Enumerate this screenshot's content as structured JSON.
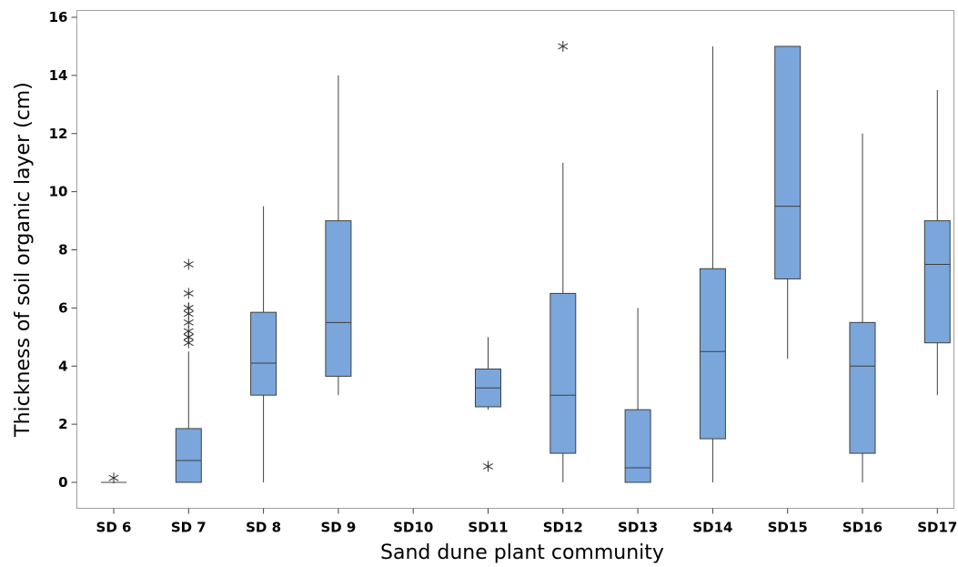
{
  "chart_data": {
    "type": "boxplot",
    "xlabel": "Sand dune plant community",
    "ylabel": "Thickness of soil organic layer (cm)",
    "ylim": [
      -0.9,
      16.2
    ],
    "yticks": [
      0,
      2,
      4,
      6,
      8,
      10,
      12,
      14,
      16
    ],
    "categories": [
      "SD 6",
      "SD 7",
      "SD 8",
      "SD 9",
      "SD10",
      "SD11",
      "SD12",
      "SD13",
      "SD14",
      "SD15",
      "SD16",
      "SD17"
    ],
    "groups": [
      {
        "category": "SD 6",
        "whisker_low": 0,
        "q1": 0,
        "median": 0,
        "q3": 0,
        "whisker_high": 0,
        "outliers": [
          0.15
        ]
      },
      {
        "category": "SD 7",
        "whisker_low": 0,
        "q1": 0,
        "median": 0.75,
        "q3": 1.85,
        "whisker_high": 4.5,
        "outliers": [
          4.8,
          5.0,
          5.0,
          5.2,
          5.5,
          5.8,
          6.0,
          6.0,
          6.5,
          7.5
        ]
      },
      {
        "category": "SD 8",
        "whisker_low": 0,
        "q1": 3.0,
        "median": 4.1,
        "q3": 5.85,
        "whisker_high": 9.5,
        "outliers": []
      },
      {
        "category": "SD 9",
        "whisker_low": 3.0,
        "q1": 3.65,
        "median": 5.5,
        "q3": 9.0,
        "whisker_high": 14.0,
        "outliers": []
      },
      {
        "category": "SD10",
        "empty": true,
        "outliers": []
      },
      {
        "category": "SD11",
        "whisker_low": 2.5,
        "q1": 2.6,
        "median": 3.25,
        "q3": 3.9,
        "whisker_high": 5.0,
        "outliers": [
          0.55
        ]
      },
      {
        "category": "SD12",
        "whisker_low": 0,
        "q1": 1.0,
        "median": 3.0,
        "q3": 6.5,
        "whisker_high": 11.0,
        "outliers": [
          15.0
        ]
      },
      {
        "category": "SD13",
        "whisker_low": 0,
        "q1": 0,
        "median": 0.5,
        "q3": 2.5,
        "whisker_high": 6.0,
        "outliers": []
      },
      {
        "category": "SD14",
        "whisker_low": 0,
        "q1": 1.5,
        "median": 4.5,
        "q3": 7.35,
        "whisker_high": 15.0,
        "outliers": []
      },
      {
        "category": "SD15",
        "whisker_low": 4.25,
        "q1": 7.0,
        "median": 9.5,
        "q3": 15.0,
        "whisker_high": 15.0,
        "outliers": []
      },
      {
        "category": "SD16",
        "whisker_low": 0,
        "q1": 1.0,
        "median": 4.0,
        "q3": 5.5,
        "whisker_high": 12.0,
        "outliers": []
      },
      {
        "category": "SD17",
        "whisker_low": 3.0,
        "q1": 4.8,
        "median": 7.5,
        "q3": 9.0,
        "whisker_high": 13.5,
        "outliers": []
      }
    ],
    "box_color": "#7aa6db",
    "line_color": "#404040",
    "grid": false,
    "legend": "none"
  }
}
